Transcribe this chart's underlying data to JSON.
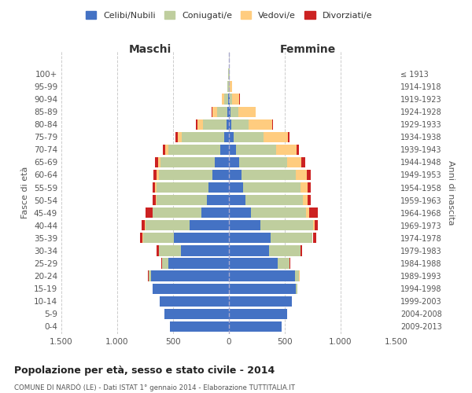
{
  "age_groups": [
    "0-4",
    "5-9",
    "10-14",
    "15-19",
    "20-24",
    "25-29",
    "30-34",
    "35-39",
    "40-44",
    "45-49",
    "50-54",
    "55-59",
    "60-64",
    "65-69",
    "70-74",
    "75-79",
    "80-84",
    "85-89",
    "90-94",
    "95-99",
    "100+"
  ],
  "birth_years": [
    "2009-2013",
    "2004-2008",
    "1999-2003",
    "1994-1998",
    "1989-1993",
    "1984-1988",
    "1979-1983",
    "1974-1978",
    "1969-1973",
    "1964-1968",
    "1959-1963",
    "1954-1958",
    "1949-1953",
    "1944-1948",
    "1939-1943",
    "1934-1938",
    "1929-1933",
    "1924-1928",
    "1919-1923",
    "1914-1918",
    "≤ 1913"
  ],
  "maschi": {
    "celibi": [
      530,
      580,
      620,
      680,
      700,
      540,
      430,
      490,
      350,
      250,
      200,
      180,
      150,
      130,
      80,
      40,
      20,
      15,
      8,
      3,
      2
    ],
    "coniugati": [
      0,
      0,
      0,
      5,
      20,
      60,
      200,
      280,
      400,
      430,
      450,
      470,
      480,
      480,
      460,
      380,
      210,
      90,
      35,
      8,
      3
    ],
    "vedovi": [
      0,
      0,
      0,
      0,
      0,
      0,
      0,
      2,
      3,
      4,
      6,
      10,
      15,
      25,
      30,
      40,
      55,
      40,
      18,
      4,
      2
    ],
    "divorziati": [
      0,
      0,
      0,
      0,
      2,
      5,
      15,
      25,
      30,
      60,
      25,
      20,
      30,
      28,
      25,
      20,
      12,
      8,
      3,
      0,
      0
    ]
  },
  "femmine": {
    "nubili": [
      470,
      520,
      560,
      600,
      590,
      440,
      360,
      370,
      280,
      200,
      150,
      130,
      110,
      90,
      65,
      40,
      20,
      12,
      5,
      3,
      2
    ],
    "coniugate": [
      0,
      0,
      2,
      10,
      40,
      100,
      280,
      380,
      470,
      490,
      510,
      510,
      490,
      430,
      360,
      270,
      155,
      70,
      25,
      6,
      2
    ],
    "vedove": [
      0,
      0,
      0,
      0,
      1,
      2,
      3,
      5,
      15,
      25,
      45,
      65,
      100,
      130,
      180,
      220,
      210,
      155,
      65,
      18,
      5
    ],
    "divorziate": [
      0,
      0,
      0,
      0,
      2,
      5,
      10,
      25,
      30,
      80,
      28,
      28,
      35,
      30,
      20,
      15,
      8,
      4,
      2,
      0,
      0
    ]
  },
  "colors": {
    "celibi": "#4472C4",
    "coniugati": "#BFCE9E",
    "vedovi": "#FFCC7F",
    "divorziati": "#CC2222"
  },
  "xlim": 1500,
  "title": "Popolazione per età, sesso e stato civile - 2014",
  "subtitle": "COMUNE DI NARDÒ (LE) - Dati ISTAT 1° gennaio 2014 - Elaborazione TUTTITALIA.IT",
  "ylabel": "Fasce di età",
  "ylabel_right": "Anni di nascita",
  "legend_labels": [
    "Celibi/Nubili",
    "Coniugati/e",
    "Vedovi/e",
    "Divorziati/e"
  ],
  "maschi_label": "Maschi",
  "femmine_label": "Femmine",
  "background_color": "#ffffff",
  "grid_color": "#cccccc"
}
